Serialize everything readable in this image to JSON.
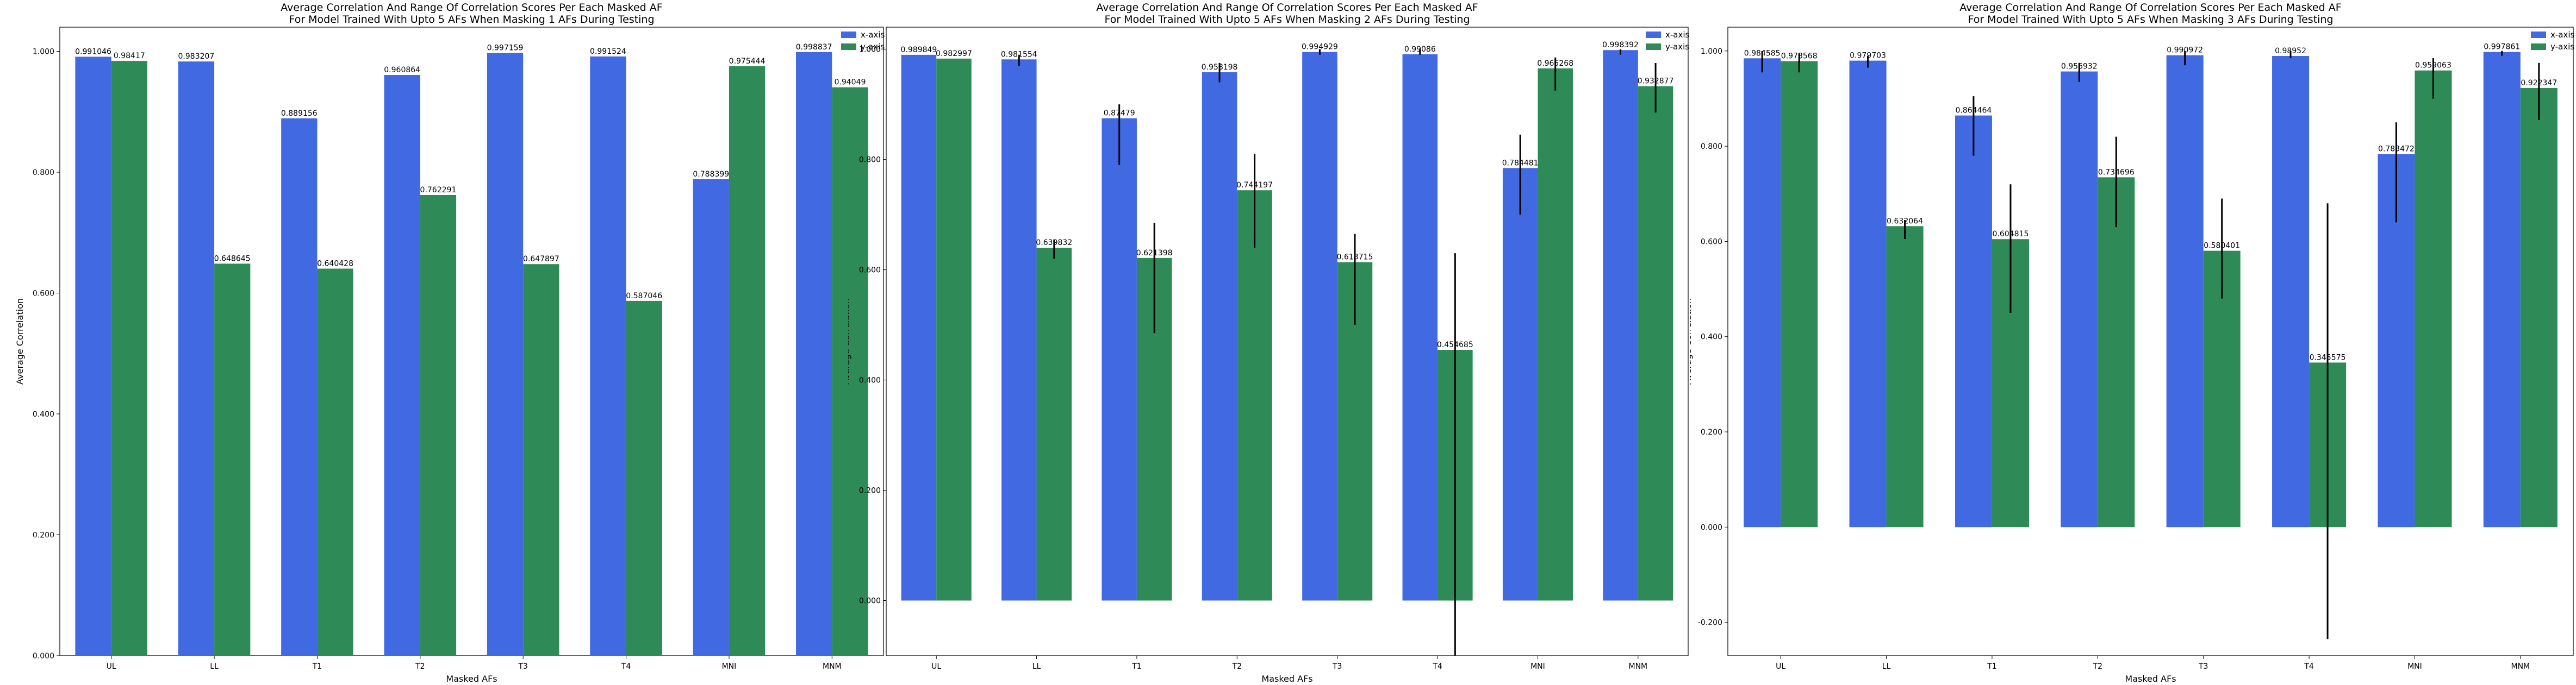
{
  "colors": {
    "x_axis": "#4169E1",
    "y_axis": "#2E8B57",
    "error_bar": "#000000"
  },
  "chart_data": [
    {
      "type": "bar",
      "title": [
        "Average Correlation And Range Of Correlation Scores Per Each Masked AF",
        "For Model Trained With Upto 5 AFs When Masking 1 AFs During Testing"
      ],
      "xlabel": "Masked AFs",
      "ylabel": "Average Correlation",
      "categories": [
        "UL",
        "LL",
        "T1",
        "T2",
        "T3",
        "T4",
        "MNI",
        "MNM"
      ],
      "ylim": [
        0,
        1.04
      ],
      "yticks": [
        0,
        0.2,
        0.4,
        0.6,
        0.8,
        1.0
      ],
      "ytick_labels": [
        "0.000",
        "0.200",
        "0.400",
        "0.600",
        "0.800",
        "1.000"
      ],
      "legend": "top-right",
      "series": [
        {
          "name": "x-axis",
          "values": [
            0.991046,
            0.983207,
            0.889156,
            0.960864,
            0.997159,
            0.991524,
            0.788399,
            0.998837
          ],
          "labels": [
            "0.991046",
            "0.983207",
            "0.889156",
            "0.960864",
            "0.997159",
            "0.991524",
            "0.788399",
            "0.998837"
          ]
        },
        {
          "name": "y-axis",
          "values": [
            0.98417,
            0.648645,
            0.640428,
            0.762291,
            0.647897,
            0.587046,
            0.975444,
            0.94049
          ],
          "labels": [
            "0.98417",
            "0.648645",
            "0.640428",
            "0.762291",
            "0.647897",
            "0.587046",
            "0.975444",
            "0.94049"
          ]
        }
      ]
    },
    {
      "type": "bar",
      "title": [
        "Average Correlation And Range Of Correlation Scores Per Each Masked AF",
        "For Model Trained With Upto 5 AFs When Masking 2 AFs During Testing"
      ],
      "xlabel": "Masked AFs",
      "ylabel": "Average Correlation",
      "categories": [
        "UL",
        "LL",
        "T1",
        "T2",
        "T3",
        "T4",
        "MNI",
        "MNM"
      ],
      "ylim": [
        -0.1,
        1.04
      ],
      "yticks": [
        0,
        0.2,
        0.4,
        0.6,
        0.8,
        1.0
      ],
      "ytick_labels": [
        "0.000",
        "0.200",
        "0.400",
        "0.600",
        "0.800",
        "1.000"
      ],
      "legend": "top-right",
      "series": [
        {
          "name": "x-axis",
          "values": [
            0.989849,
            0.981554,
            0.87479,
            0.958198,
            0.994929,
            0.99086,
            0.784481,
            0.998392
          ],
          "labels": [
            "0.989849",
            "0.981554",
            "0.87479",
            "0.958198",
            "0.994929",
            "0.99086",
            "0.784481",
            "0.998392"
          ],
          "err_low": [
            0.989849,
            0.97,
            0.79,
            0.94,
            0.99,
            0.99,
            0.7,
            0.99
          ],
          "err_high": [
            0.989849,
            0.99,
            0.9,
            0.975,
            1.0,
            1.0,
            0.845,
            1.0
          ]
        },
        {
          "name": "y-axis",
          "values": [
            0.982997,
            0.639832,
            0.621398,
            0.744197,
            0.613715,
            0.454685,
            0.965268,
            0.932877
          ],
          "labels": [
            "0.982997",
            "0.639832",
            "0.621398",
            "0.744197",
            "0.613715",
            "0.454685",
            "0.965268",
            "0.932877"
          ],
          "err_low": [
            0.982997,
            0.62,
            0.485,
            0.64,
            0.5,
            -0.1,
            0.925,
            0.885
          ],
          "err_high": [
            0.982997,
            0.655,
            0.685,
            0.81,
            0.665,
            0.63,
            0.985,
            0.975
          ]
        }
      ]
    },
    {
      "type": "bar",
      "title": [
        "Average Correlation And Range Of Correlation Scores Per Each Masked AF",
        "For Model Trained With Upto 5 AFs When Masking 3 AFs During Testing"
      ],
      "xlabel": "Masked AFs",
      "ylabel": "Average Correlation",
      "categories": [
        "UL",
        "LL",
        "T1",
        "T2",
        "T3",
        "T4",
        "MNI",
        "MNM"
      ],
      "ylim": [
        -0.27,
        1.05
      ],
      "yticks": [
        -0.2,
        0,
        0.2,
        0.4,
        0.6,
        0.8,
        1.0
      ],
      "ytick_labels": [
        "-0.200",
        "0.000",
        "0.200",
        "0.400",
        "0.600",
        "0.800",
        "1.000"
      ],
      "legend": "top-right",
      "series": [
        {
          "name": "x-axis",
          "values": [
            0.984585,
            0.979703,
            0.864464,
            0.956932,
            0.990972,
            0.98952,
            0.783472,
            0.997861
          ],
          "labels": [
            "0.984585",
            "0.979703",
            "0.864464",
            "0.956932",
            "0.990972",
            "0.98952",
            "0.783472",
            "0.997861"
          ],
          "err_low": [
            0.955,
            0.965,
            0.78,
            0.935,
            0.97,
            0.985,
            0.64,
            0.99
          ],
          "err_high": [
            1.0,
            0.99,
            0.905,
            0.975,
            1.0,
            1.0,
            0.85,
            1.0
          ]
        },
        {
          "name": "y-axis",
          "values": [
            0.978568,
            0.632064,
            0.604815,
            0.734696,
            0.580401,
            0.345575,
            0.959063,
            0.922347
          ],
          "labels": [
            "0.978568",
            "0.632064",
            "0.604815",
            "0.734696",
            "0.580401",
            "0.345575",
            "0.959063",
            "0.922347"
          ],
          "err_low": [
            0.955,
            0.605,
            0.45,
            0.63,
            0.48,
            -0.235,
            0.9,
            0.855
          ],
          "err_high": [
            0.995,
            0.645,
            0.72,
            0.82,
            0.69,
            0.68,
            0.985,
            0.975
          ]
        }
      ]
    }
  ]
}
